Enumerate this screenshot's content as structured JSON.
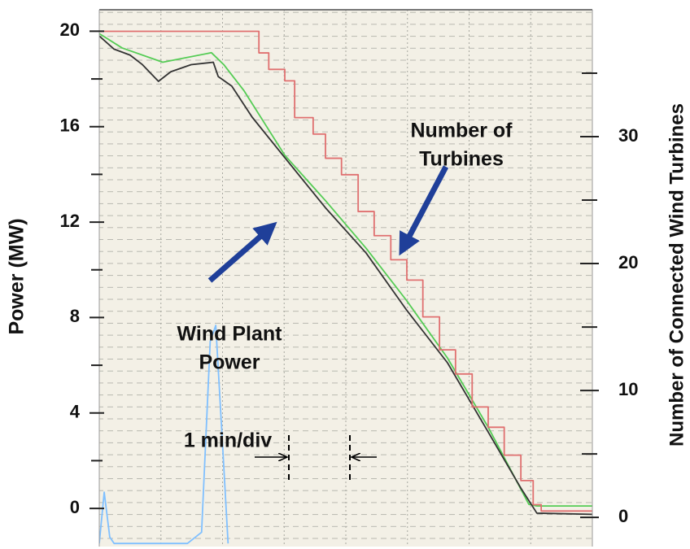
{
  "chart_data": {
    "type": "line",
    "ylabel": "Power (MW)",
    "y2label": "Number of Connected Wind Turbines",
    "xlim": [
      0,
      8
    ],
    "xticks": [
      0,
      1,
      2,
      3,
      4,
      5,
      6,
      7,
      8
    ],
    "ylim": [
      -1.6,
      20.9
    ],
    "yticks": [
      0,
      4,
      8,
      12,
      16,
      20
    ],
    "yminor": [
      2,
      6,
      10,
      14,
      18
    ],
    "y2lim": [
      -2.3,
      40
    ],
    "y2ticks": [
      0,
      10,
      20,
      30
    ],
    "y2minor": [
      5,
      15,
      25,
      35
    ],
    "grid": true,
    "series": [
      {
        "color": "#80c0ff",
        "x": [
          0,
          0.08,
          0.17,
          0.24,
          1.43,
          1.66,
          1.8,
          1.89,
          1.98,
          2.09
        ],
        "values": [
          -1.47,
          0.68,
          -1.2,
          -1.47,
          -1.47,
          -1.0,
          7.0,
          7.67,
          3.6,
          -1.47
        ]
      },
      {
        "color": "#55cc55",
        "x": [
          0,
          0.37,
          1.03,
          1.82,
          2.02,
          2.35,
          3.01,
          3.67,
          4.33,
          4.99,
          5.65,
          6.31,
          6.97,
          7.1,
          8
        ],
        "values": [
          19.9,
          19.3,
          18.7,
          19.1,
          18.6,
          17.5,
          14.8,
          12.9,
          10.9,
          8.7,
          6.3,
          3.4,
          0.17,
          0.1,
          0.1
        ]
      },
      {
        "color": "#333333",
        "x": [
          0,
          0.24,
          0.5,
          0.7,
          0.96,
          1.16,
          1.49,
          1.85,
          1.93,
          2.15,
          2.48,
          3.01,
          3.67,
          4.33,
          4.99,
          5.65,
          6.31,
          6.84,
          7.1,
          8
        ],
        "values": [
          19.8,
          19.25,
          19.0,
          18.6,
          17.9,
          18.3,
          18.6,
          18.7,
          18.1,
          17.7,
          16.4,
          14.7,
          12.6,
          10.7,
          8.3,
          6.1,
          3.2,
          0.85,
          -0.2,
          -0.25
        ]
      },
      {
        "color": "#e07070",
        "axis": "y2",
        "step": true,
        "x": [
          0,
          2.48,
          2.59,
          2.75,
          3.01,
          3.17,
          3.47,
          3.67,
          3.93,
          4.2,
          4.46,
          4.73,
          4.99,
          5.25,
          5.52,
          5.78,
          6.05,
          6.31,
          6.57,
          6.84,
          7.04,
          7.17,
          8
        ],
        "values": [
          38.3,
          38.3,
          36.6,
          35.3,
          34.4,
          31.5,
          30.2,
          28.3,
          27.0,
          24.1,
          22.2,
          20.3,
          18.7,
          15.8,
          13.2,
          11.3,
          8.7,
          7.1,
          4.9,
          2.9,
          1.0,
          0.5,
          0.5
        ]
      }
    ],
    "annotations": [
      {
        "lines": [
          "Wind Plant",
          "Power"
        ]
      },
      {
        "lines": [
          "Number of",
          "Turbines"
        ]
      },
      {
        "lines": [
          "1 min/div"
        ]
      }
    ]
  }
}
